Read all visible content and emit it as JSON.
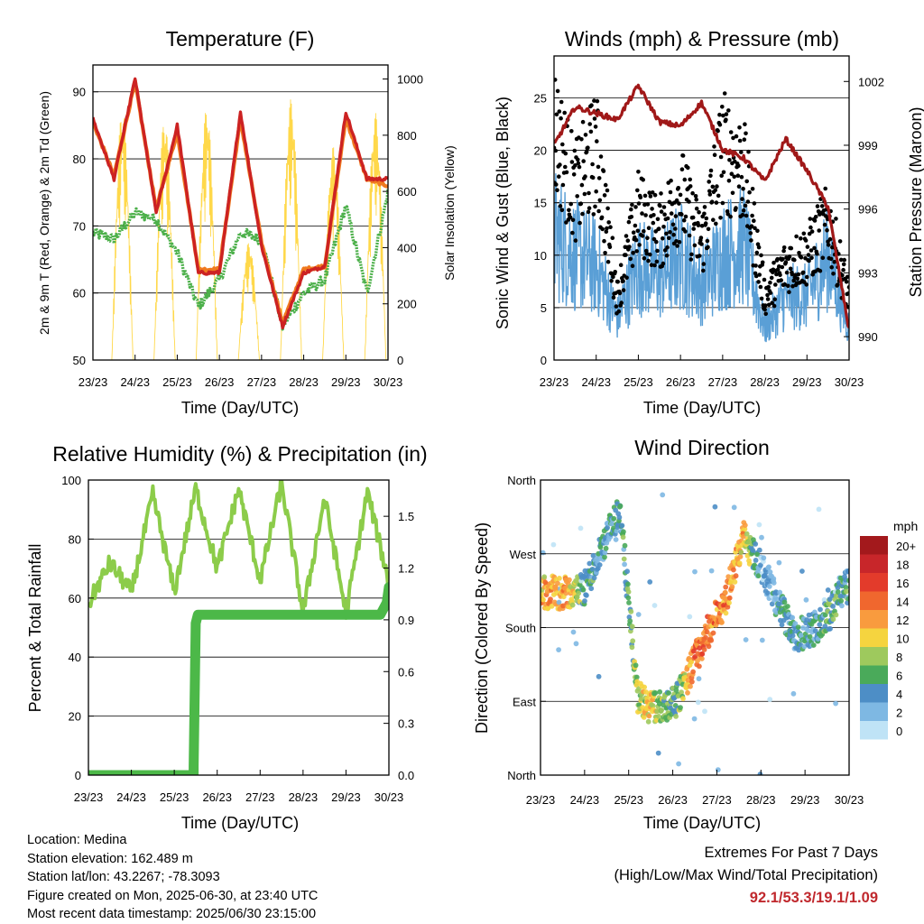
{
  "x_ticks": [
    "23/23",
    "24/23",
    "25/23",
    "26/23",
    "27/23",
    "28/23",
    "29/23",
    "30/23"
  ],
  "x_label": "Time (Day/UTC)",
  "colors": {
    "temp_2m": "#cc2222",
    "temp_9m": "#f07a1f",
    "dewpoint": "#4cb04a",
    "solar": "#ffd84a",
    "gust": "#000000",
    "wind": "#5a9fd6",
    "pressure": "#a01818",
    "rh": "#8ccc4a",
    "rain": "#4cb848",
    "extremes": "#c0282d"
  },
  "panels": {
    "temperature": {
      "title": "Temperature (F)",
      "ylabel": "2m & 9m T (Red, Orange) & 2m Td (Green)",
      "y2label": "Solar Insolation (Yellow)",
      "yticks": [
        "50",
        "60",
        "70",
        "80",
        "90"
      ],
      "y2ticks": [
        "0",
        "200",
        "400",
        "600",
        "800",
        "1000"
      ]
    },
    "winds": {
      "title": "Winds (mph) & Pressure (mb)",
      "ylabel": "Sonic Wind & Gust (Blue, Black)",
      "y2label": "Station Pressure (Maroon)",
      "yticks": [
        "0",
        "5",
        "10",
        "15",
        "20",
        "25"
      ],
      "y2ticks": [
        "990",
        "993",
        "996",
        "999",
        "1002"
      ]
    },
    "humidity": {
      "title": "Relative Humidity (%) & Precipitation (in)",
      "ylabel": "Percent & Total Rainfall",
      "yticks": [
        "0",
        "20",
        "40",
        "60",
        "80",
        "100"
      ],
      "y2ticks": [
        "0.0",
        "0.3",
        "0.6",
        "0.9",
        "1.2",
        "1.5"
      ]
    },
    "direction": {
      "title": "Wind Direction",
      "ylabel": "Direction (Colored By Speed)",
      "yticks": [
        "North",
        "East",
        "South",
        "West",
        "North"
      ],
      "legend_title": "mph",
      "legend_labels": [
        "20+",
        "18",
        "16",
        "14",
        "12",
        "10",
        "8",
        "6",
        "4",
        "2",
        "0"
      ],
      "legend_colors": [
        "#a3191c",
        "#c8262a",
        "#e33b2b",
        "#f0672e",
        "#f99b3e",
        "#f5d43f",
        "#9ec95d",
        "#4aaa5a",
        "#4d8ec6",
        "#7eb8e3",
        "#bfe3f6"
      ]
    }
  },
  "info": {
    "location": "Location: Medina",
    "elevation": "Station elevation: 162.489 m",
    "latlon": "Station lat/lon: 43.2267; -78.3093",
    "created": "Figure created on Mon, 2025-06-30, at 23:40 UTC",
    "latest": "Most recent data timestamp: 2025/06/30 23:15:00"
  },
  "extremes": {
    "line1": "Extremes For Past 7 Days",
    "line2": "(High/Low/Max Wind/Total Precipitation)",
    "values": "92.1/53.3/19.1/1.09"
  },
  "chart_data": [
    {
      "type": "line",
      "title": "Temperature (F)",
      "xlabel": "Time (Day/UTC)",
      "ylabel": "2m & 9m T (Red, Orange) & 2m Td (Green)",
      "y2label": "Solar Insolation (Yellow)",
      "x": [
        0,
        0.5,
        1,
        1.5,
        2,
        2.5,
        3,
        3.5,
        4,
        4.5,
        5,
        5.5,
        6,
        6.5,
        7
      ],
      "ylim": [
        50,
        94
      ],
      "y2lim": [
        0,
        1050
      ],
      "series": [
        {
          "name": "2m T",
          "axis": "y",
          "values": [
            86,
            77,
            92,
            72,
            85,
            63,
            63,
            87,
            67,
            55,
            63,
            64,
            87,
            77,
            77
          ]
        },
        {
          "name": "9m T",
          "axis": "y",
          "values": [
            85.5,
            77.5,
            91.5,
            72.5,
            84,
            63.5,
            63.5,
            86,
            67.5,
            55.5,
            63.5,
            64,
            86,
            77,
            76
          ]
        },
        {
          "name": "2m Td",
          "axis": "y",
          "values": [
            69,
            68,
            72,
            71,
            66,
            58,
            62,
            69,
            68,
            55,
            60,
            62,
            73,
            60,
            75
          ]
        },
        {
          "name": "Solar Insolation",
          "axis": "y2",
          "peaks": [
            900,
            860,
            900,
            420,
            930,
            760,
            880
          ]
        }
      ]
    },
    {
      "type": "line",
      "title": "Winds (mph) & Pressure (mb)",
      "xlabel": "Time (Day/UTC)",
      "ylabel": "Sonic Wind & Gust (Blue, Black)",
      "y2label": "Station Pressure (Maroon)",
      "x": [
        0,
        0.5,
        1,
        1.5,
        2,
        2.5,
        3,
        3.5,
        4,
        4.5,
        5,
        5.5,
        6,
        6.5,
        7
      ],
      "ylim": [
        0,
        29
      ],
      "y2lim": [
        988.9,
        1003.2
      ],
      "series": [
        {
          "name": "Sonic Wind",
          "axis": "y",
          "values": [
            12,
            10,
            9,
            4,
            9,
            8,
            10,
            7,
            10,
            11,
            3,
            6,
            6,
            10,
            3
          ]
        },
        {
          "name": "Gust",
          "axis": "y",
          "values": [
            22,
            16,
            20,
            6,
            14,
            12,
            16,
            11,
            20,
            18,
            6,
            9,
            10,
            13,
            6
          ]
        },
        {
          "name": "Station Pressure",
          "axis": "y2",
          "values": [
            999,
            1000.8,
            1000.5,
            1000.2,
            1001.8,
            1000.1,
            999.9,
            1001,
            998.8,
            998.4,
            997.3,
            999.3,
            997.8,
            996.1,
            990.3
          ]
        }
      ]
    },
    {
      "type": "line",
      "title": "Relative Humidity (%) & Precipitation (in)",
      "xlabel": "Time (Day/UTC)",
      "ylabel": "Percent & Total Rainfall",
      "x": [
        0,
        0.5,
        1,
        1.5,
        2,
        2.5,
        3,
        3.5,
        4,
        4.5,
        5,
        5.5,
        6,
        6.5,
        7
      ],
      "ylim": [
        0,
        100
      ],
      "y2lim": [
        0,
        1.71
      ],
      "series": [
        {
          "name": "Relative Humidity",
          "axis": "y",
          "values": [
            58,
            72,
            62,
            95,
            62,
            97,
            70,
            97,
            66,
            99,
            55,
            94,
            55,
            96,
            65
          ]
        },
        {
          "name": "Total Rainfall",
          "axis": "y2",
          "values": [
            0,
            0,
            0,
            0,
            0,
            0.93,
            0.93,
            0.93,
            0.93,
            0.93,
            0.93,
            0.93,
            0.93,
            0.93,
            1.09
          ]
        }
      ]
    },
    {
      "type": "scatter",
      "title": "Wind Direction",
      "xlabel": "Time (Day/UTC)",
      "ylabel": "Direction (Colored By Speed)",
      "ylim": [
        0,
        360
      ],
      "color_by": "speed (mph)",
      "x": [
        0.2,
        0.6,
        1.0,
        1.8,
        2.2,
        2.5,
        2.8,
        3.1,
        3.5,
        3.8,
        4.2,
        4.6,
        5.0,
        5.4,
        5.8,
        6.2,
        6.6,
        6.9
      ],
      "y": [
        223,
        222,
        228,
        325,
        95,
        82,
        85,
        92,
        140,
        175,
        215,
        290,
        255,
        208,
        170,
        178,
        200,
        230
      ],
      "speed": [
        11,
        12,
        5,
        4,
        8,
        10,
        7,
        6,
        14,
        13,
        13,
        11,
        2,
        4,
        4,
        4,
        6,
        5
      ]
    }
  ]
}
